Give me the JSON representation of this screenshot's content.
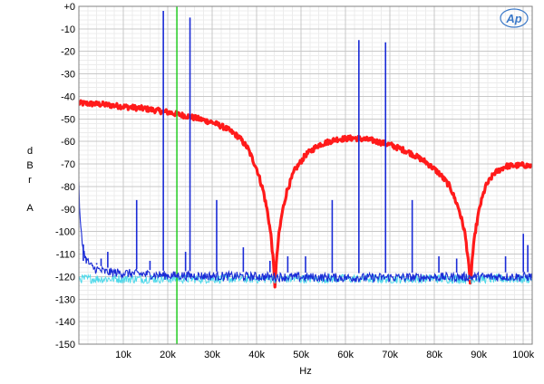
{
  "chart_data": {
    "type": "line",
    "xlabel": "Hz",
    "ylabel_letters": [
      "d",
      "B",
      "r"
    ],
    "ylabel_unit_suffix": "A",
    "xlim": [
      0,
      102000
    ],
    "ylim": [
      -150,
      0
    ],
    "x_ticks": [
      {
        "value": 10000,
        "label": "10k"
      },
      {
        "value": 20000,
        "label": "20k"
      },
      {
        "value": 30000,
        "label": "30k"
      },
      {
        "value": 40000,
        "label": "40k"
      },
      {
        "value": 50000,
        "label": "50k"
      },
      {
        "value": 60000,
        "label": "60k"
      },
      {
        "value": 70000,
        "label": "70k"
      },
      {
        "value": 80000,
        "label": "80k"
      },
      {
        "value": 90000,
        "label": "90k"
      },
      {
        "value": 100000,
        "label": "100k"
      }
    ],
    "y_ticks": [
      {
        "value": 0,
        "label": "+0"
      },
      {
        "value": -10,
        "label": "-10"
      },
      {
        "value": -20,
        "label": "-20"
      },
      {
        "value": -30,
        "label": "-30"
      },
      {
        "value": -40,
        "label": "-40"
      },
      {
        "value": -50,
        "label": "-50"
      },
      {
        "value": -60,
        "label": "-60"
      },
      {
        "value": -70,
        "label": "-70"
      },
      {
        "value": -80,
        "label": "-80"
      },
      {
        "value": -90,
        "label": "-90"
      },
      {
        "value": -100,
        "label": "-100"
      },
      {
        "value": -110,
        "label": "-110"
      },
      {
        "value": -120,
        "label": "-120"
      },
      {
        "value": -130,
        "label": "-130"
      },
      {
        "value": -140,
        "label": "-140"
      },
      {
        "value": -150,
        "label": "-150"
      }
    ],
    "grid": true,
    "minor_grid_x_step": 2000,
    "minor_grid_y_step": 2,
    "marker_line": {
      "x": 22050,
      "color": "#22cc22"
    },
    "series": [
      {
        "color": "#ff1a1a",
        "kind": "noise_band",
        "points": [
          [
            0,
            -43
          ],
          [
            5000,
            -43.5
          ],
          [
            10000,
            -44.5
          ],
          [
            15000,
            -45.5
          ],
          [
            20000,
            -47
          ],
          [
            25000,
            -49
          ],
          [
            30000,
            -51.5
          ],
          [
            33000,
            -54
          ],
          [
            36000,
            -58
          ],
          [
            38000,
            -63
          ],
          [
            40000,
            -72
          ],
          [
            41500,
            -82
          ],
          [
            42500,
            -92
          ],
          [
            43300,
            -103
          ],
          [
            43800,
            -115
          ],
          [
            44100,
            -124
          ],
          [
            44400,
            -115
          ],
          [
            44900,
            -103
          ],
          [
            45700,
            -92
          ],
          [
            46800,
            -82
          ],
          [
            48500,
            -73
          ],
          [
            51000,
            -66
          ],
          [
            54000,
            -61.5
          ],
          [
            58000,
            -59
          ],
          [
            62000,
            -58.5
          ],
          [
            66000,
            -59.5
          ],
          [
            70000,
            -61.5
          ],
          [
            74000,
            -64.5
          ],
          [
            78000,
            -69
          ],
          [
            81000,
            -74
          ],
          [
            83500,
            -80
          ],
          [
            85500,
            -90
          ],
          [
            86800,
            -100
          ],
          [
            87600,
            -112
          ],
          [
            88100,
            -125
          ],
          [
            88500,
            -112
          ],
          [
            89200,
            -100
          ],
          [
            90200,
            -89
          ],
          [
            91500,
            -80
          ],
          [
            93500,
            -74
          ],
          [
            96000,
            -71
          ],
          [
            100000,
            -70.5
          ],
          [
            102000,
            -71
          ]
        ]
      },
      {
        "color": "#4dd9ea",
        "kind": "noise_floor",
        "points": [
          [
            0,
            -121
          ],
          [
            102000,
            -121
          ]
        ]
      },
      {
        "color": "#1a2bd6",
        "kind": "spectrum",
        "floor": [
          [
            0,
            -80
          ],
          [
            300,
            -96
          ],
          [
            800,
            -106
          ],
          [
            1500,
            -112
          ],
          [
            3000,
            -116
          ],
          [
            6000,
            -118
          ],
          [
            20000,
            -119.5
          ],
          [
            60000,
            -120.5
          ],
          [
            102000,
            -120
          ]
        ],
        "spikes": [
          {
            "x": 1000,
            "y": -113
          },
          {
            "x": 4000,
            "y": -114
          },
          {
            "x": 5000,
            "y": -112
          },
          {
            "x": 6500,
            "y": -109
          },
          {
            "x": 13000,
            "y": -86
          },
          {
            "x": 19000,
            "y": -2
          },
          {
            "x": 25000,
            "y": -5
          },
          {
            "x": 16000,
            "y": -113
          },
          {
            "x": 24000,
            "y": -109
          },
          {
            "x": 31000,
            "y": -86
          },
          {
            "x": 37000,
            "y": -107
          },
          {
            "x": 43000,
            "y": -113
          },
          {
            "x": 47000,
            "y": -111
          },
          {
            "x": 51000,
            "y": -111
          },
          {
            "x": 57000,
            "y": -86
          },
          {
            "x": 63000,
            "y": -15
          },
          {
            "x": 69000,
            "y": -16
          },
          {
            "x": 75000,
            "y": -86
          },
          {
            "x": 81000,
            "y": -111
          },
          {
            "x": 85000,
            "y": -112
          },
          {
            "x": 96000,
            "y": -111
          },
          {
            "x": 100000,
            "y": -101
          },
          {
            "x": 101000,
            "y": -106
          }
        ]
      }
    ]
  },
  "logo": {
    "text": "Ap",
    "color": "#3a78c8"
  }
}
